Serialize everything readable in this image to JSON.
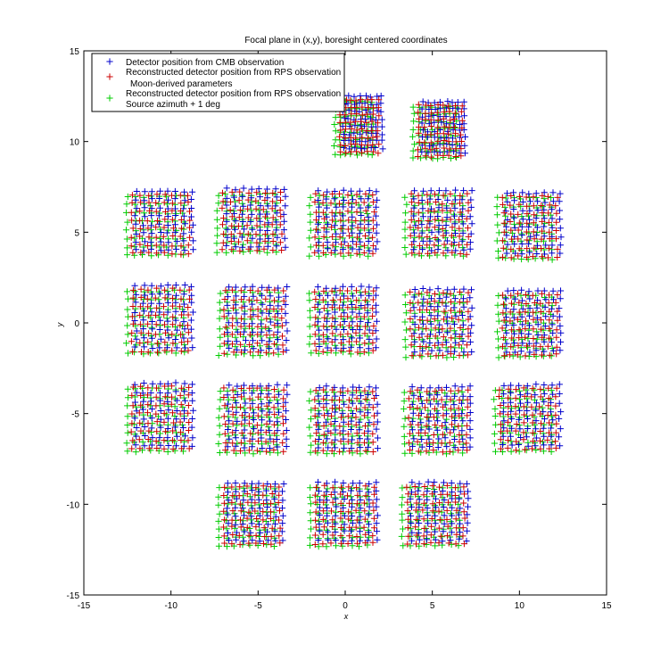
{
  "chart_data": {
    "type": "scatter",
    "title": "Focal plane in (x,y), boresight centered coordinates",
    "xlabel": "x",
    "ylabel": "y",
    "xlim": [
      -15,
      15
    ],
    "ylim": [
      -15,
      15
    ],
    "xticks": [
      -15,
      -10,
      -5,
      0,
      5,
      10,
      15
    ],
    "yticks": [
      -15,
      -10,
      -5,
      0,
      5,
      10,
      15
    ],
    "grid": false,
    "legend_position": "top-left",
    "marker": "+",
    "series": [
      {
        "name": "Detector position from CMB observation",
        "color": "#0000cc",
        "offset": [
          0.25,
          0.2
        ]
      },
      {
        "name": "Reconstructed detector position from RPS observation Moon-derived parameters",
        "legend_lines": [
          "Reconstructed detector position from RPS observation",
          "Moon-derived parameters"
        ],
        "color": "#cc0000",
        "offset": [
          0.05,
          0.0
        ]
      },
      {
        "name": "Reconstructed detector position from RPS observation Source azimuth + 1 deg",
        "legend_lines": [
          "Reconstructed detector position from RPS observation",
          "Source azimuth + 1 deg"
        ],
        "color": "#00cc00",
        "offset": [
          -0.25,
          -0.1
        ]
      }
    ],
    "modules": [
      {
        "row": 0,
        "x": [
          -0.5,
          2.0
        ],
        "y": [
          9.2,
          12.5
        ]
      },
      {
        "row": 0,
        "x": [
          4.0,
          6.8
        ],
        "y": [
          9.0,
          12.2
        ]
      },
      {
        "row": 1,
        "x": [
          -12.5,
          -8.8
        ],
        "y": [
          3.6,
          7.3
        ]
      },
      {
        "row": 1,
        "x": [
          -7.3,
          -3.5
        ],
        "y": [
          3.8,
          7.4
        ]
      },
      {
        "row": 1,
        "x": [
          -2.0,
          1.8
        ],
        "y": [
          3.6,
          7.3
        ]
      },
      {
        "row": 1,
        "x": [
          3.5,
          7.2
        ],
        "y": [
          3.6,
          7.3
        ]
      },
      {
        "row": 1,
        "x": [
          8.8,
          12.3
        ],
        "y": [
          3.4,
          7.2
        ]
      },
      {
        "row": 2,
        "x": [
          -12.5,
          -8.8
        ],
        "y": [
          -1.8,
          2.1
        ]
      },
      {
        "row": 2,
        "x": [
          -7.2,
          -3.4
        ],
        "y": [
          -1.9,
          2.0
        ]
      },
      {
        "row": 2,
        "x": [
          -2.0,
          1.8
        ],
        "y": [
          -1.8,
          2.0
        ]
      },
      {
        "row": 2,
        "x": [
          3.5,
          7.2
        ],
        "y": [
          -2.0,
          1.9
        ]
      },
      {
        "row": 2,
        "x": [
          8.8,
          12.3
        ],
        "y": [
          -2.0,
          1.8
        ]
      },
      {
        "row": 3,
        "x": [
          -12.5,
          -8.8
        ],
        "y": [
          -7.2,
          -3.3
        ]
      },
      {
        "row": 3,
        "x": [
          -7.2,
          -3.4
        ],
        "y": [
          -7.3,
          -3.4
        ]
      },
      {
        "row": 3,
        "x": [
          -2.0,
          1.8
        ],
        "y": [
          -7.3,
          -3.5
        ]
      },
      {
        "row": 3,
        "x": [
          3.4,
          7.2
        ],
        "y": [
          -7.3,
          -3.5
        ]
      },
      {
        "row": 3,
        "x": [
          8.6,
          12.3
        ],
        "y": [
          -7.2,
          -3.4
        ]
      },
      {
        "row": 4,
        "x": [
          -7.2,
          -3.6
        ],
        "y": [
          -12.4,
          -8.8
        ]
      },
      {
        "row": 4,
        "x": [
          -2.0,
          1.8
        ],
        "y": [
          -12.4,
          -8.8
        ]
      },
      {
        "row": 4,
        "x": [
          3.3,
          7.0
        ],
        "y": [
          -12.4,
          -8.8
        ]
      }
    ]
  }
}
